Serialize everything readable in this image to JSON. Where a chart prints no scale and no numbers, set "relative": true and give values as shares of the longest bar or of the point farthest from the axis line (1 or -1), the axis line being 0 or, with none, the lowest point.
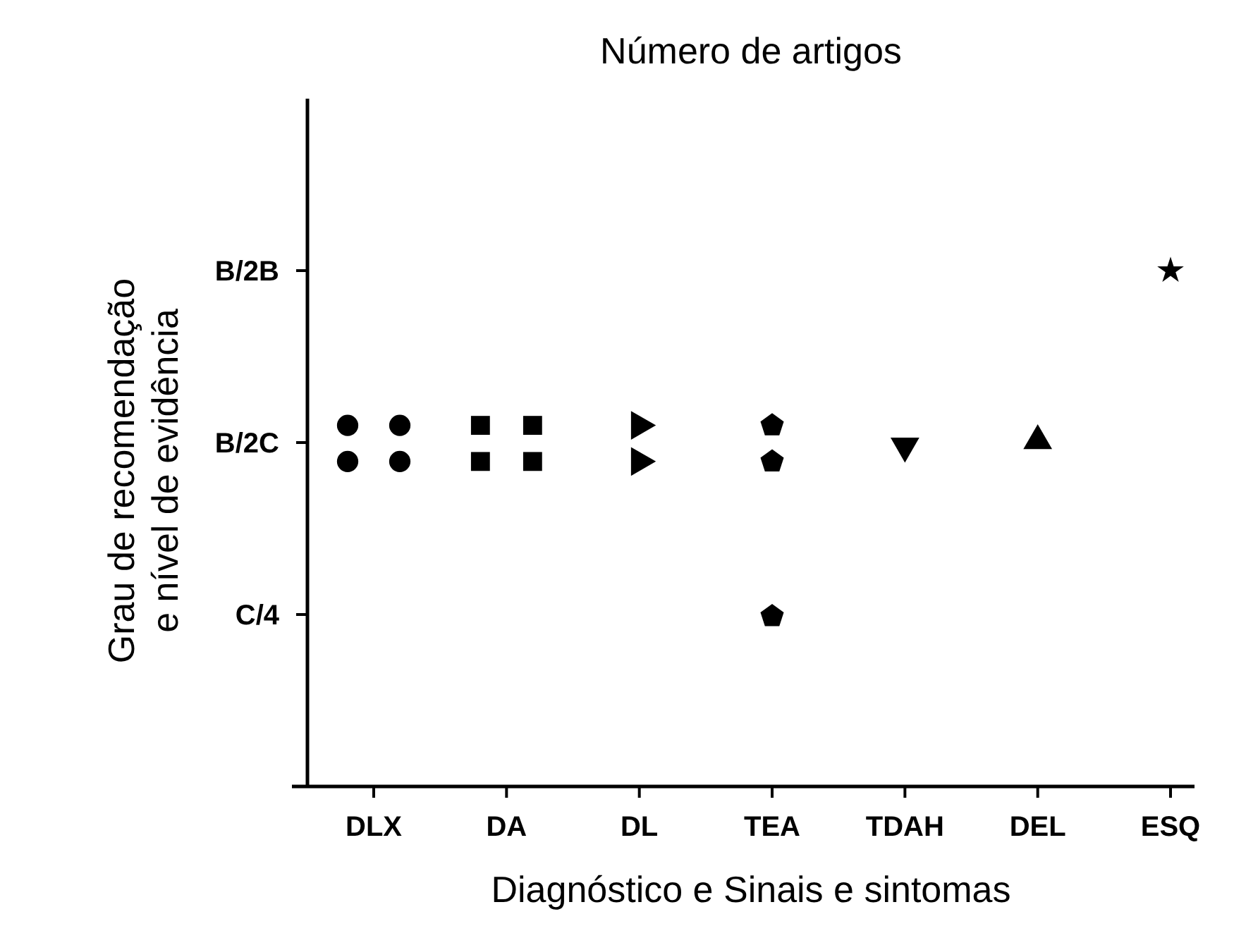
{
  "chart_data": {
    "type": "scatter",
    "title": "Número de artigos",
    "xlabel": "Diagnóstico e Sinais e sintomas",
    "ylabel": "Grau de recomendação\ne nível de evidência",
    "categories": [
      "DLX",
      "DA",
      "DL",
      "TEA",
      "TDAH",
      "DEL",
      "ESQ"
    ],
    "relative": true,
    "annotations": [
      "B/2B",
      "B/2C",
      "C/4"
    ],
    "grid": false,
    "series": [
      {
        "color": "#000000",
        "marker": "circle",
        "x": [
          "DLX",
          "DLX",
          "DLX",
          "DLX"
        ],
        "values": [
          0.7,
          0.7,
          0.63,
          0.63
        ]
      },
      {
        "color": "#000000",
        "marker": "square",
        "x": [
          "DA",
          "DA",
          "DA",
          "DA"
        ],
        "values": [
          0.7,
          0.7,
          0.63,
          0.63
        ]
      },
      {
        "color": "#000000",
        "marker": "triangle-right",
        "x": [
          "DL",
          "DL"
        ],
        "values": [
          0.7,
          0.63
        ]
      },
      {
        "color": "#000000",
        "x": [
          "TEA",
          "TEA",
          "TEA"
        ],
        "values": [
          0.7,
          0.63,
          0.33
        ]
      },
      {
        "color": "#000000",
        "marker": "triangle-down",
        "x": [
          "TDAH"
        ],
        "values": [
          0.66
        ]
      },
      {
        "color": "#000000",
        "marker": "triangle",
        "x": [
          "DEL"
        ],
        "values": [
          0.67
        ]
      },
      {
        "color": "#000000",
        "marker": "star",
        "x": [
          "ESQ"
        ],
        "values": [
          1
        ]
      }
    ]
  }
}
